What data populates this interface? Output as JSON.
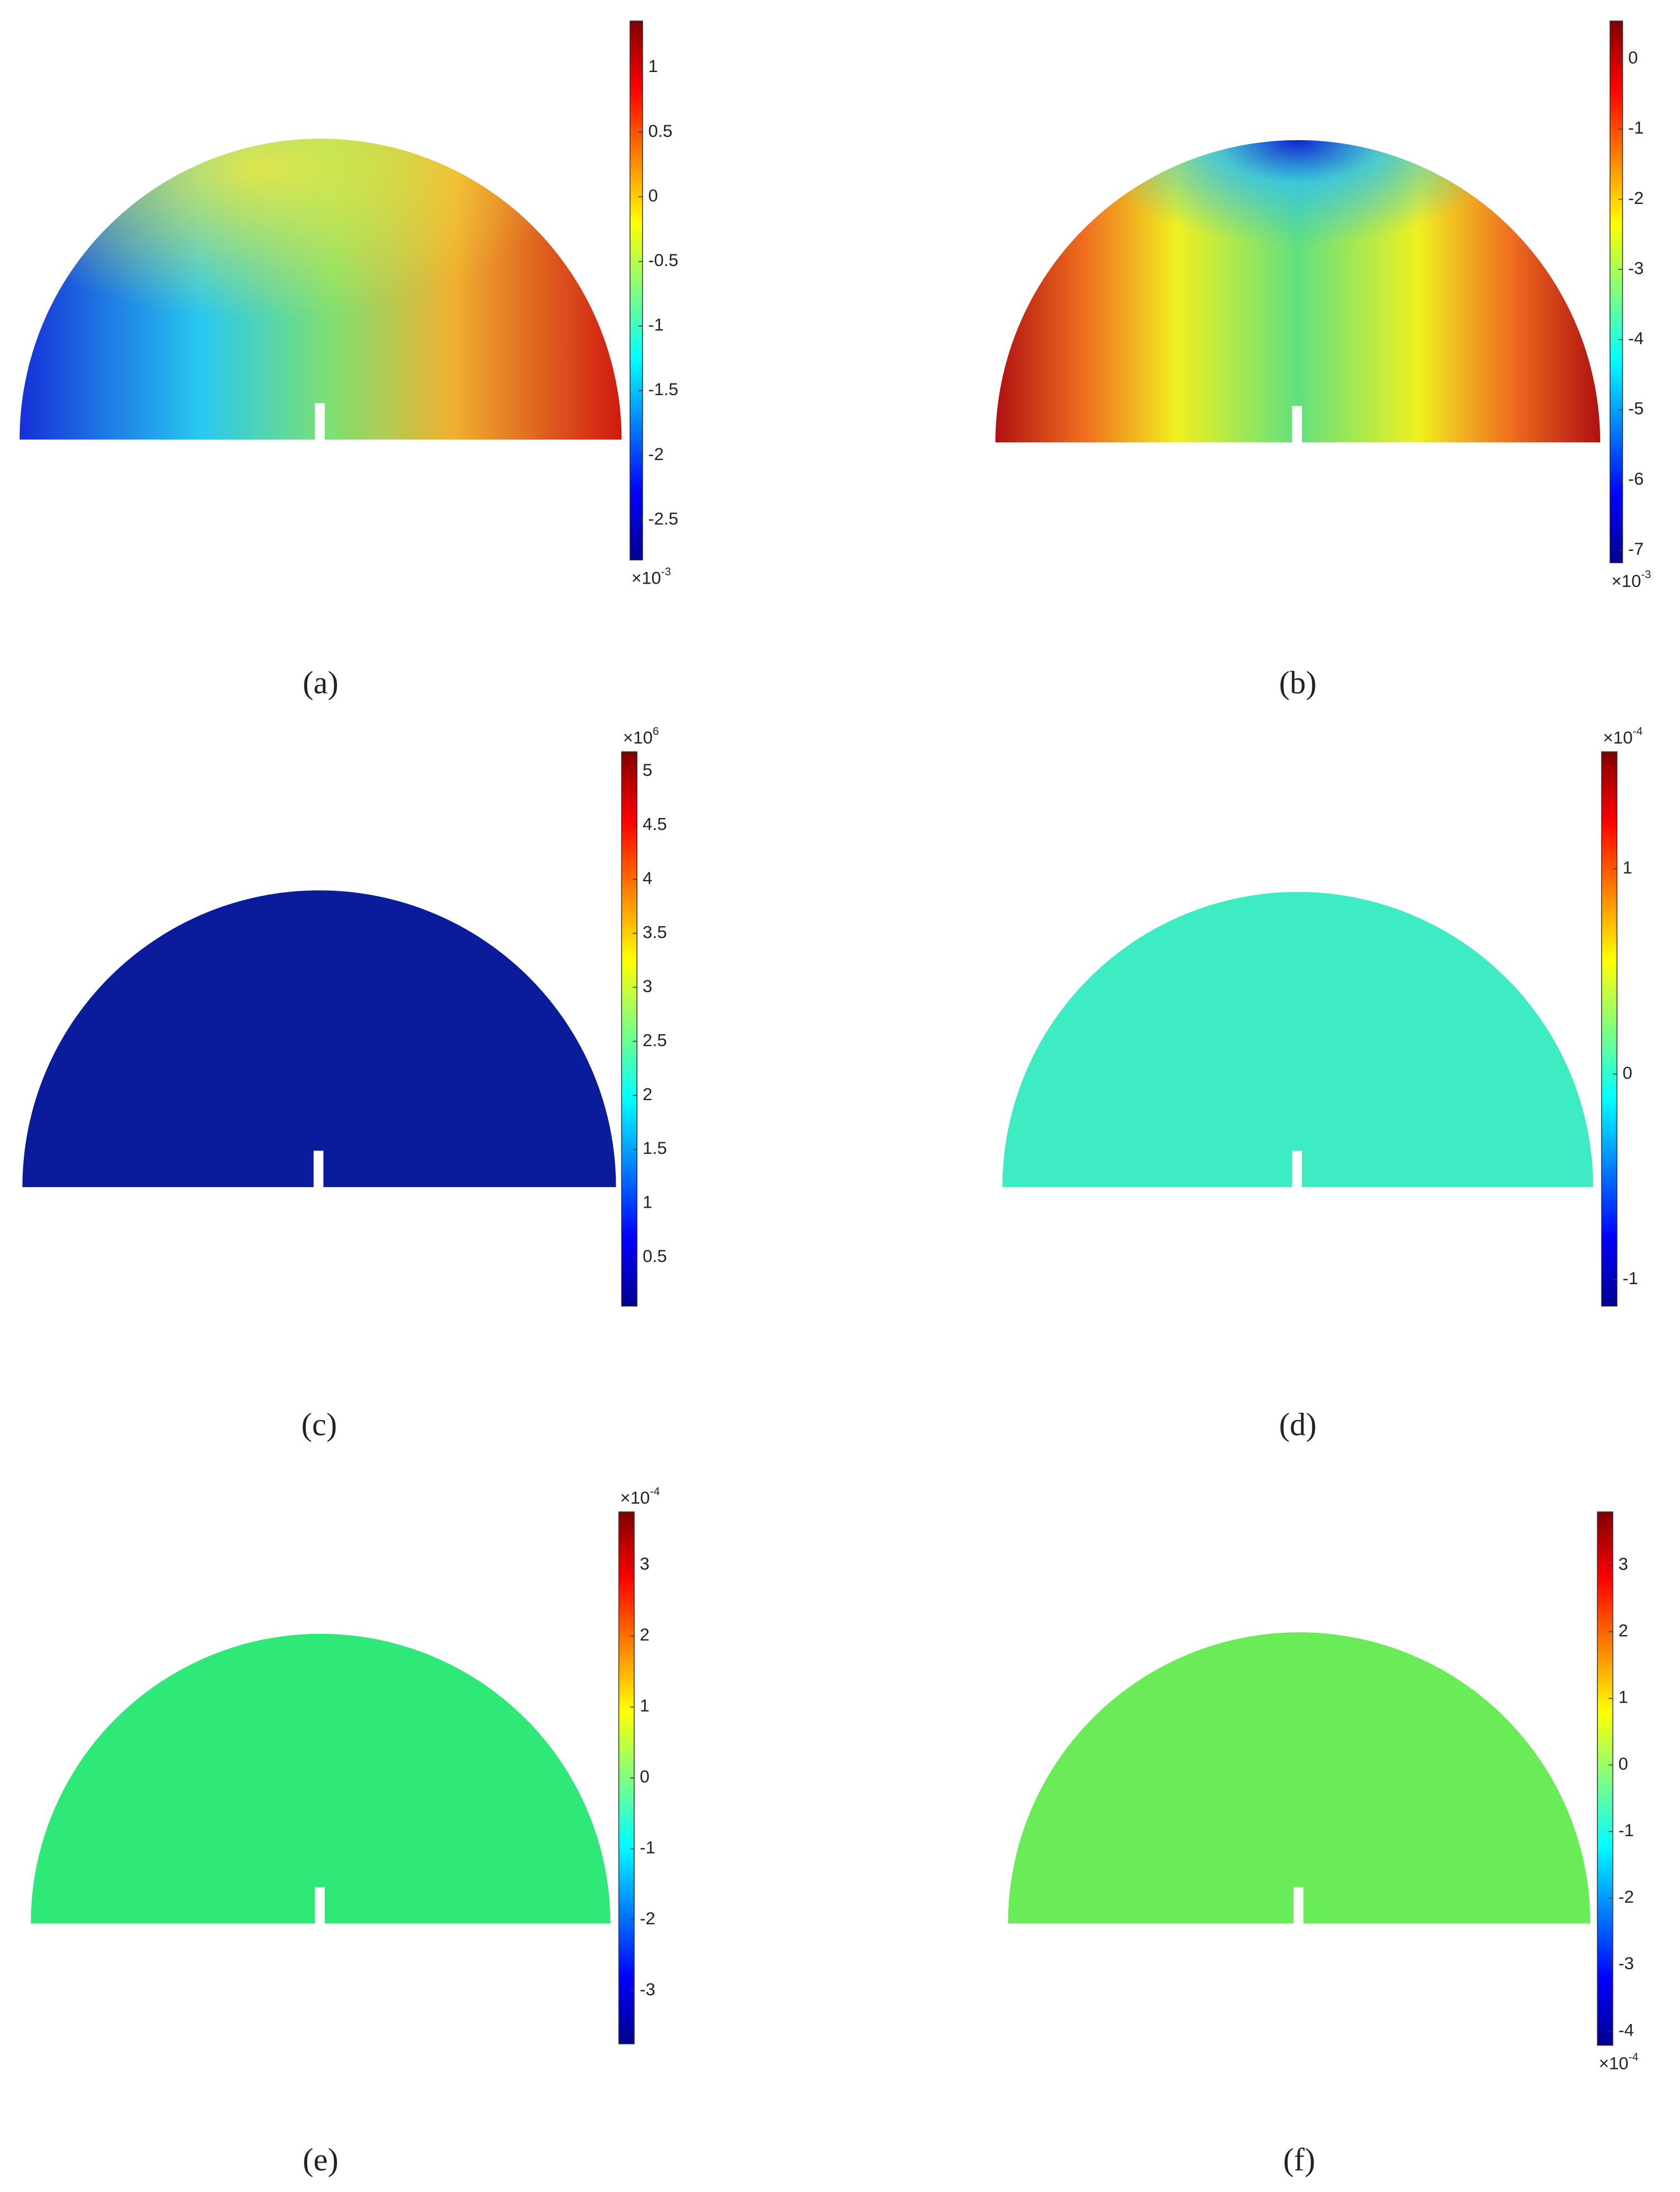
{
  "chart_data": [
    {
      "type": "field",
      "label": "(a)",
      "colormap": "jet",
      "ylim": [
        -2.81,
        1.36
      ],
      "yticks": [
        -2.5,
        -2,
        -1.5,
        -1,
        -0.5,
        0,
        0.5,
        1
      ],
      "scale_base": "×10",
      "scale_exponent": "-3",
      "scale_position": "bottom"
    },
    {
      "type": "field",
      "label": "(b)",
      "colormap": "jet",
      "ylim": [
        -7.18,
        0.54
      ],
      "yticks": [
        -7,
        -6,
        -5,
        -4,
        -3,
        -2,
        -1,
        0
      ],
      "scale_base": "×10",
      "scale_exponent": "-3",
      "scale_position": "bottom"
    },
    {
      "type": "field",
      "label": "(c)",
      "colormap": "jet",
      "ylim": [
        0.05,
        5.18
      ],
      "yticks": [
        0.5,
        1,
        1.5,
        2,
        2.5,
        3,
        3.5,
        4,
        4.5,
        5
      ],
      "scale_base": "×10",
      "scale_exponent": "6",
      "scale_position": "top"
    },
    {
      "type": "field",
      "label": "(d)",
      "colormap": "jet",
      "ylim": [
        -1.13,
        1.57
      ],
      "yticks": [
        -1,
        0,
        1
      ],
      "scale_base": "×10",
      "scale_exponent": "-4",
      "scale_position": "top"
    },
    {
      "type": "field",
      "label": "(e)",
      "colormap": "jet",
      "ylim": [
        -3.75,
        3.75
      ],
      "yticks": [
        -3,
        -2,
        -1,
        0,
        1,
        2,
        3
      ],
      "scale_base": "×10",
      "scale_exponent": "-4",
      "scale_position": "top"
    },
    {
      "type": "field",
      "label": "(f)",
      "colormap": "jet",
      "ylim": [
        -4.21,
        3.8
      ],
      "yticks": [
        -4,
        -3,
        -2,
        -1,
        0,
        1,
        2,
        3
      ],
      "scale_base": "×10",
      "scale_exponent": "-4",
      "scale_position": "bottom"
    }
  ]
}
